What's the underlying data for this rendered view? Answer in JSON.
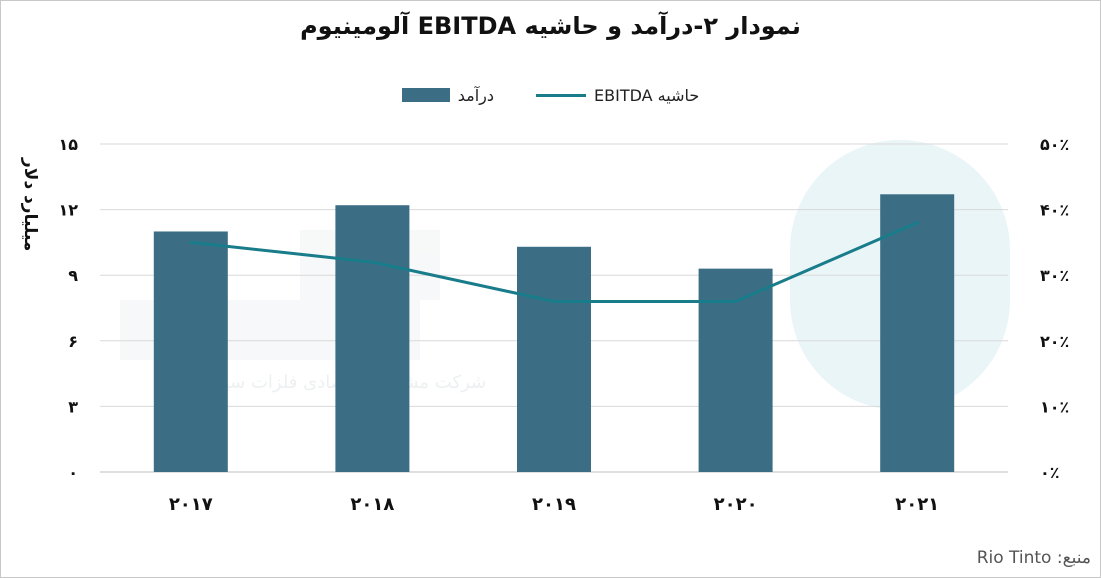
{
  "chart_data": {
    "type": "bar",
    "title": "نمودار ۲-درآمد و حاشیه EBITDA آلومینیوم",
    "categories": [
      "۲۰۱۷",
      "۲۰۱۸",
      "۲۰۱۹",
      "۲۰۲۰",
      "۲۰۲۱"
    ],
    "series": [
      {
        "name": "درآمد",
        "kind": "bar",
        "axis": "left",
        "color": "#3b6e85",
        "values": [
          11.0,
          12.2,
          10.3,
          9.3,
          12.7
        ]
      },
      {
        "name": "حاشیه EBITDA",
        "kind": "line",
        "axis": "right",
        "color": "#187c8a",
        "values": [
          35,
          32,
          26,
          26,
          38
        ]
      }
    ],
    "ylabel": "میلیارد دلار",
    "ylim": [
      0,
      15
    ],
    "y_ticks": [
      "۰",
      "۳",
      "۶",
      "۹",
      "۱۲",
      "۱۵"
    ],
    "y_tick_values": [
      0,
      3,
      6,
      9,
      12,
      15
    ],
    "y2lim": [
      0,
      50
    ],
    "y2_ticks": [
      "۰٪",
      "۱۰٪",
      "۲۰٪",
      "۳۰٪",
      "۴۰٪",
      "۵۰٪"
    ],
    "y2_tick_values": [
      0,
      10,
      20,
      30,
      40,
      50
    ],
    "grid": true,
    "legend_position": "top"
  },
  "source_label": "منبع: Rio Tinto",
  "watermark_text": "شرکت مشاوره اقتصادی فلزات سیوار ارمان"
}
